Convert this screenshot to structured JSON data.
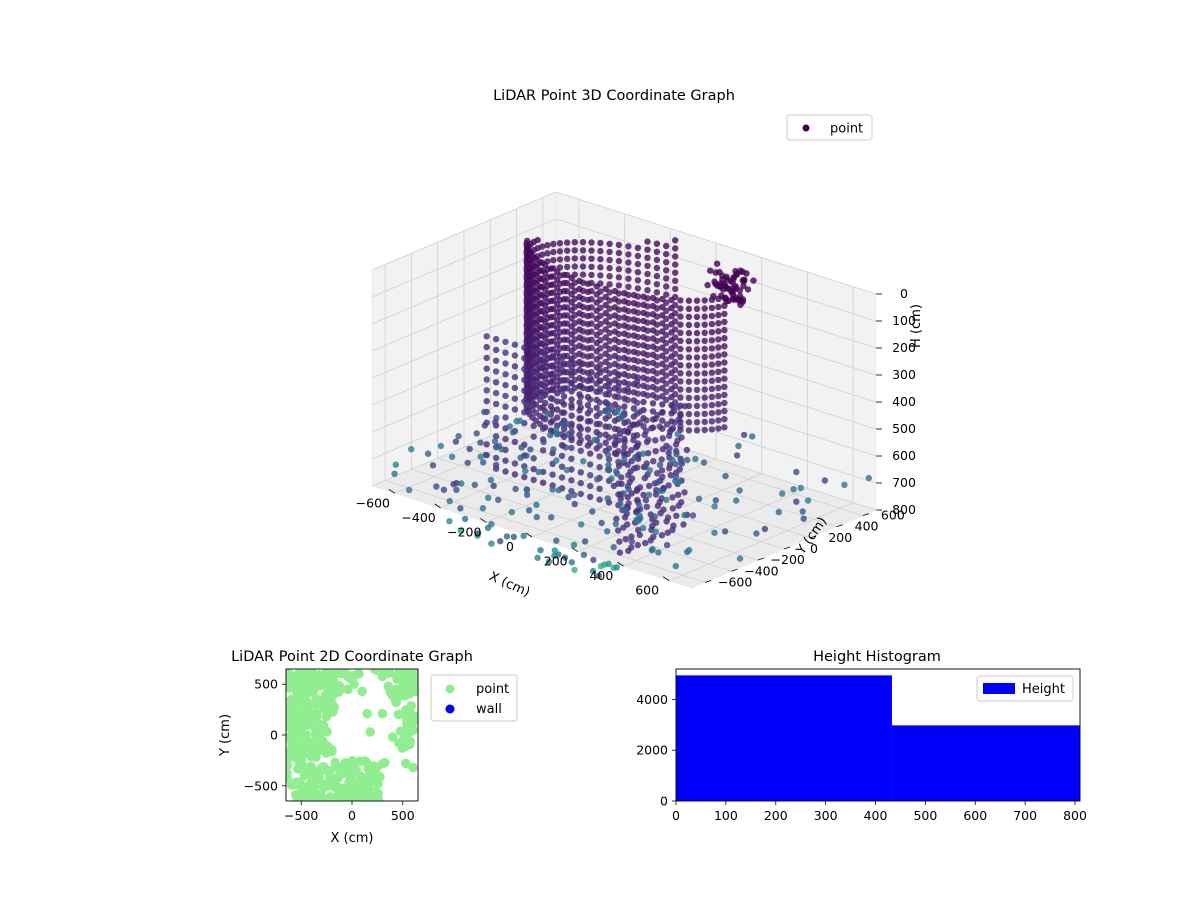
{
  "chart_data": [
    {
      "type": "scatter",
      "title": "LiDAR Point 3D Coordinate Graph",
      "xlabel": "X (cm)",
      "ylabel": "Y (cm)",
      "zlabel": "H (cm)",
      "xlim": [
        -700,
        700
      ],
      "ylim": [
        -700,
        700
      ],
      "zlim": [
        800,
        0
      ],
      "x_ticks": [
        -600,
        -400,
        -200,
        0,
        200,
        400,
        600
      ],
      "y_ticks": [
        -600,
        -400,
        -200,
        0,
        200,
        400,
        600
      ],
      "z_ticks": [
        0,
        100,
        200,
        300,
        400,
        500,
        600,
        700,
        800
      ],
      "z_inverted": true,
      "grid": true,
      "legend": {
        "position": "top-right",
        "entries": [
          "point"
        ]
      },
      "series": [
        {
          "name": "point",
          "color": "#440154"
        }
      ]
    },
    {
      "type": "scatter",
      "title": "LiDAR Point 2D Coordinate Graph",
      "xlabel": "X (cm)",
      "ylabel": "Y (cm)",
      "xlim": [
        -650,
        650
      ],
      "ylim": [
        -650,
        650
      ],
      "x_ticks": [
        -500,
        0,
        500
      ],
      "y_ticks": [
        -500,
        0,
        500
      ],
      "legend": {
        "position": "outside-right",
        "entries": [
          "point",
          "wall"
        ]
      },
      "series": [
        {
          "name": "point",
          "color": "#90ee90"
        },
        {
          "name": "wall",
          "color": "#0000ff"
        }
      ]
    },
    {
      "type": "bar",
      "title": "Height Histogram",
      "xlabel": "",
      "ylabel": "",
      "xlim": [
        0,
        810
      ],
      "ylim": [
        0,
        5200
      ],
      "x_ticks": [
        0,
        100,
        200,
        300,
        400,
        500,
        600,
        700,
        800
      ],
      "y_ticks": [
        0,
        2000,
        4000
      ],
      "legend": {
        "position": "top-right",
        "entries": [
          "Height"
        ]
      },
      "bins": [
        {
          "from": 0,
          "to": 433,
          "count": 4950
        },
        {
          "from": 433,
          "to": 810,
          "count": 2980
        }
      ],
      "series": [
        {
          "name": "Height",
          "color": "#0000ff"
        }
      ]
    }
  ]
}
